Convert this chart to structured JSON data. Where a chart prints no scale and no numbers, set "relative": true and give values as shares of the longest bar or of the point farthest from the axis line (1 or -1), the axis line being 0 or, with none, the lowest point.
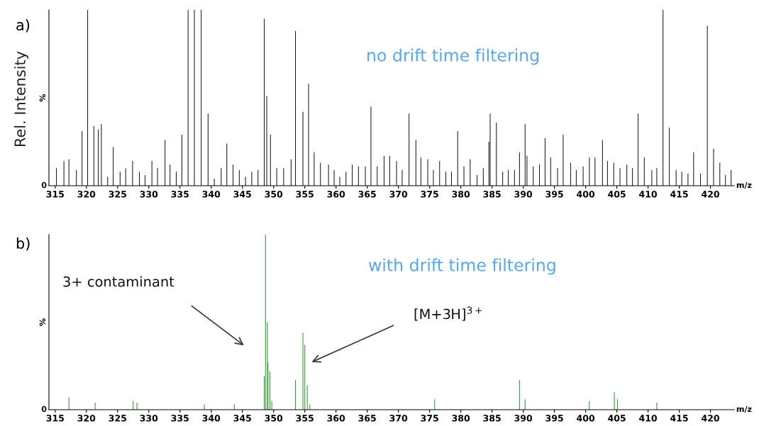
{
  "chart_data": [
    {
      "type": "bar",
      "title": "a)",
      "xlabel": "m/z",
      "ylabel": "%",
      "relative": true,
      "xlim": [
        314,
        423.8
      ],
      "xticks": [
        315,
        320,
        325,
        330,
        335,
        340,
        345,
        350,
        355,
        360,
        365,
        370,
        375,
        380,
        385,
        390,
        395,
        400,
        405,
        410,
        415,
        420
      ],
      "grid": false,
      "annotations": [
        "Rel. Intensity",
        "no drift time filtering",
        "0"
      ],
      "series": [
        {
          "color": "#1a1a1a",
          "x": [
            315.2,
            316.4,
            317.2,
            318.4,
            319.3,
            320.2,
            321.2,
            321.9,
            322.4,
            323.4,
            324.3,
            325.4,
            326.3,
            327.4,
            328.5,
            329.4,
            330.5,
            331.4,
            332.6,
            333.4,
            334.4,
            335.3,
            336.3,
            337.3,
            338.4,
            339.5,
            340.5,
            341.6,
            342.5,
            343.5,
            344.5,
            345.5,
            346.5,
            347.5,
            348.5,
            348.9,
            349.5,
            350.5,
            351.6,
            352.8,
            353.5,
            354.7,
            355.6,
            356.5,
            357.5,
            358.8,
            359.7,
            360.6,
            361.6,
            362.6,
            363.6,
            364.7,
            365.6,
            366.6,
            367.7,
            368.6,
            369.7,
            370.6,
            371.7,
            372.8,
            373.6,
            374.7,
            375.6,
            376.6,
            377.6,
            378.5,
            379.5,
            380.5,
            381.5,
            382.6,
            383.6,
            384.5,
            384.7,
            385.7,
            386.7,
            387.6,
            388.6,
            389.4,
            390.3,
            390.6,
            391.6,
            392.6,
            393.5,
            394.4,
            395.5,
            396.4,
            397.6,
            398.5,
            399.6,
            400.6,
            401.5,
            402.7,
            403.5,
            404.5,
            405.5,
            406.6,
            407.5,
            408.4,
            409.4,
            410.6,
            411.4,
            412.4,
            413.4,
            414.5,
            415.4,
            416.4,
            417.3,
            418.4,
            419.5,
            420.5,
            421.5,
            422.4,
            423.3
          ],
          "values": [
            0.1,
            0.14,
            0.15,
            0.09,
            0.31,
            1.0,
            0.34,
            0.32,
            0.35,
            0.05,
            0.22,
            0.08,
            0.1,
            0.14,
            0.08,
            0.06,
            0.14,
            0.1,
            0.26,
            0.12,
            0.08,
            0.29,
            1.0,
            1.0,
            1.0,
            0.41,
            0.04,
            0.1,
            0.24,
            0.12,
            0.09,
            0.05,
            0.08,
            0.09,
            0.95,
            0.51,
            0.29,
            0.1,
            0.1,
            0.15,
            0.88,
            0.42,
            0.58,
            0.19,
            0.13,
            0.12,
            0.09,
            0.05,
            0.08,
            0.12,
            0.11,
            0.11,
            0.45,
            0.11,
            0.17,
            0.17,
            0.14,
            0.09,
            0.41,
            0.26,
            0.16,
            0.15,
            0.09,
            0.14,
            0.08,
            0.08,
            0.31,
            0.11,
            0.15,
            0.06,
            0.1,
            0.25,
            0.41,
            0.36,
            0.08,
            0.09,
            0.09,
            0.19,
            0.35,
            0.17,
            0.11,
            0.12,
            0.27,
            0.16,
            0.1,
            0.29,
            0.13,
            0.09,
            0.11,
            0.16,
            0.16,
            0.26,
            0.14,
            0.13,
            0.1,
            0.12,
            0.1,
            0.41,
            0.16,
            0.09,
            0.1,
            1.0,
            0.33,
            0.09,
            0.08,
            0.07,
            0.19,
            0.07,
            0.91,
            0.21,
            0.13,
            0.06,
            0.09
          ]
        }
      ]
    },
    {
      "type": "bar",
      "title": "b)",
      "xlabel": "m/z",
      "ylabel": "%",
      "relative": true,
      "xlim": [
        314,
        423.8
      ],
      "xticks": [
        315,
        320,
        325,
        330,
        335,
        340,
        345,
        350,
        355,
        360,
        365,
        370,
        375,
        380,
        385,
        390,
        395,
        400,
        405,
        410,
        415,
        420
      ],
      "grid": false,
      "annotations": [
        "with drift time filtering",
        "3+ contaminant",
        "[M+3H]$^{3+}$",
        "0"
      ],
      "series": [
        {
          "color": "#2e9a2e",
          "x": [
            317.2,
            321.4,
            327.5,
            328.1,
            338.9,
            343.7,
            348.5,
            348.7,
            349.0,
            349.1,
            349.4,
            349.7,
            353.5,
            354.7,
            355.0,
            355.4,
            355.8,
            375.8,
            389.4,
            390.3,
            400.6,
            404.6,
            405.1,
            411.4
          ],
          "values": [
            0.07,
            0.04,
            0.05,
            0.04,
            0.03,
            0.03,
            0.19,
            1.0,
            0.5,
            0.27,
            0.22,
            0.05,
            0.17,
            0.44,
            0.37,
            0.14,
            0.03,
            0.06,
            0.17,
            0.06,
            0.05,
            0.1,
            0.06,
            0.04
          ]
        }
      ]
    }
  ]
}
